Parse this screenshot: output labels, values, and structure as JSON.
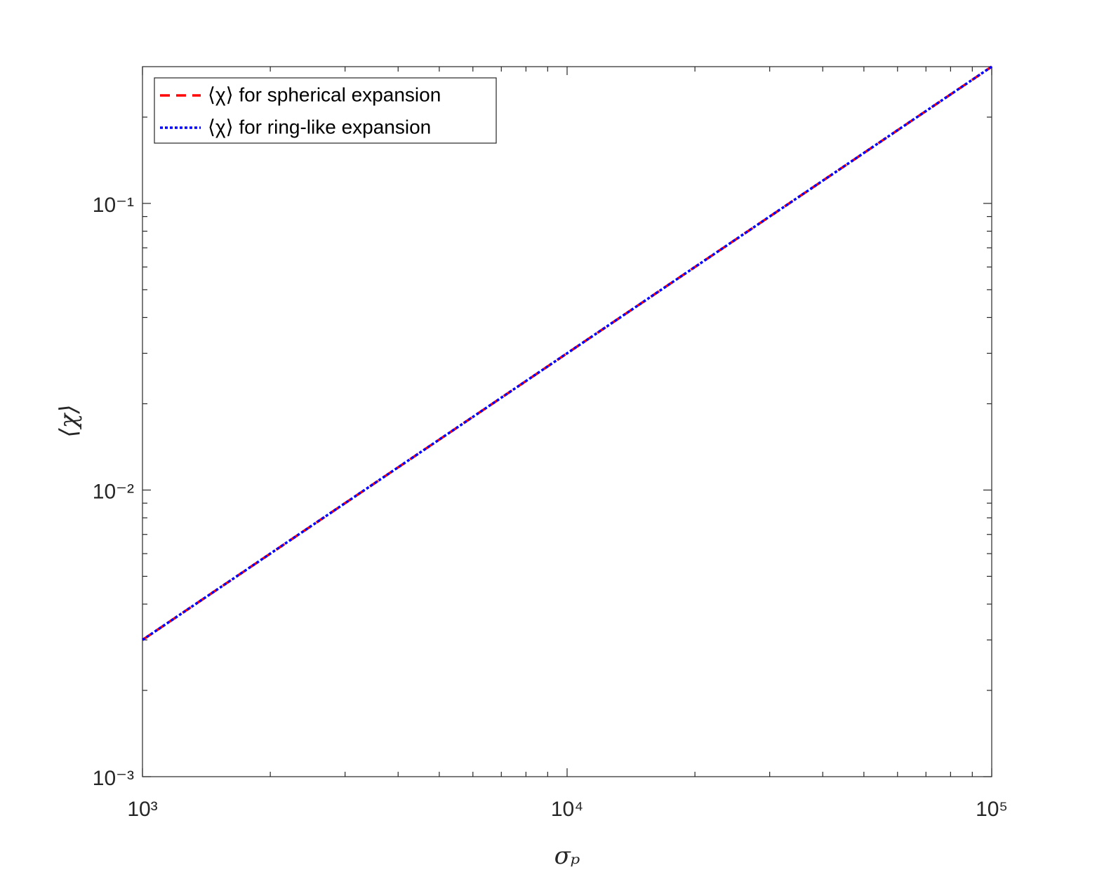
{
  "chart_data": {
    "type": "line",
    "x_label": "σₚ",
    "y_label": "⟨χ⟩",
    "x": [
      1000,
      2000,
      5000,
      10000,
      20000,
      50000,
      100000
    ],
    "series": [
      {
        "name": "⟨χ⟩ for spherical expansion",
        "color": "#ff0000",
        "style": "dashed",
        "values": [
          0.003,
          0.006,
          0.015,
          0.03,
          0.06,
          0.15,
          0.3
        ]
      },
      {
        "name": "⟨χ⟩ for ring-like expansion",
        "color": "#0000ff",
        "style": "dotted",
        "values": [
          0.003,
          0.006,
          0.015,
          0.03,
          0.06,
          0.15,
          0.3
        ]
      }
    ],
    "xscale": "log",
    "yscale": "log",
    "xlim": [
      1000,
      100000
    ],
    "ylim": [
      0.001,
      0.3
    ],
    "xticks": [
      {
        "value": 1000,
        "label": "10³"
      },
      {
        "value": 10000,
        "label": "10⁴"
      },
      {
        "value": 100000,
        "label": "10⁵"
      }
    ],
    "yticks": [
      {
        "value": 0.001,
        "label": "10⁻³"
      },
      {
        "value": 0.01,
        "label": "10⁻²"
      },
      {
        "value": 0.1,
        "label": "10⁻¹"
      }
    ],
    "minor_ticks": true,
    "grid": false,
    "legend": "upper left"
  }
}
